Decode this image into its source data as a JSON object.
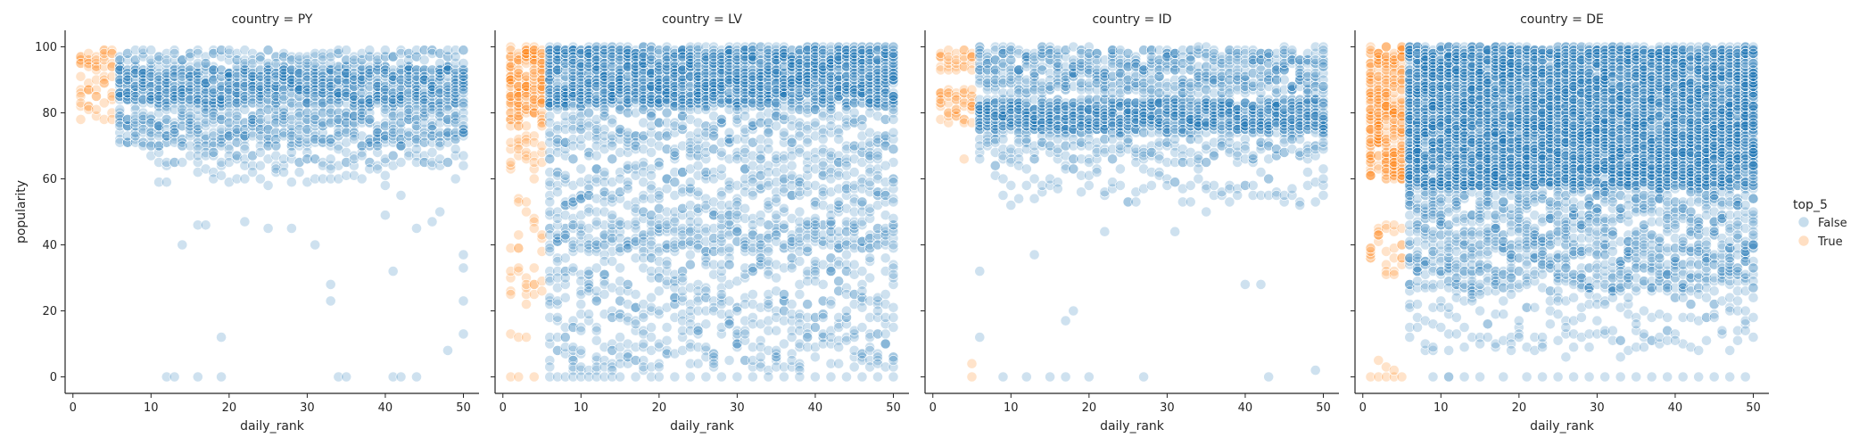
{
  "chart_data": {
    "type": "scatter",
    "layout": "facet-grid",
    "xlabel": "daily_rank",
    "ylabel": "popularity",
    "xlim": [
      -1,
      52
    ],
    "ylim": [
      -5,
      105
    ],
    "xticks": [
      0,
      10,
      20,
      30,
      40,
      50
    ],
    "yticks": [
      0,
      20,
      40,
      60,
      80,
      100
    ],
    "sharey": true,
    "grid": false,
    "legend": {
      "title": "top_5",
      "placement": "right",
      "entries": [
        {
          "label": "False",
          "color": "#1f77b4"
        },
        {
          "label": "True",
          "color": "#ff7f0e"
        }
      ]
    },
    "hue": {
      "field": "top_5",
      "true_rule": "daily_rank <= 5"
    },
    "point_alpha": 0.22,
    "panels": [
      {
        "title": "country = PY",
        "rank_max_true": 5,
        "bands": [
          {
            "x": [
              1,
              5
            ],
            "y": [
              93,
              99
            ],
            "w": 4
          },
          {
            "x": [
              1,
              5
            ],
            "y": [
              84,
              92
            ],
            "w": 2
          },
          {
            "x": [
              1,
              5
            ],
            "y": [
              78,
              83
            ],
            "w": 1.2
          },
          {
            "x": [
              6,
              50
            ],
            "y": [
              82,
              94
            ],
            "w": 8
          },
          {
            "x": [
              6,
              50
            ],
            "y": [
              95,
              99
            ],
            "w": 3
          },
          {
            "x": [
              6,
              50
            ],
            "y": [
              70,
              81
            ],
            "w": 4
          },
          {
            "x": [
              10,
              50
            ],
            "y": [
              64,
              70
            ],
            "w": 1
          },
          {
            "x": [
              16,
              40
            ],
            "y": [
              58,
              63
            ],
            "w": 1
          }
        ],
        "extras": [
          [
            12,
            0
          ],
          [
            13,
            0
          ],
          [
            16,
            0
          ],
          [
            19,
            0
          ],
          [
            34,
            0
          ],
          [
            35,
            0
          ],
          [
            41,
            0
          ],
          [
            42,
            0
          ],
          [
            44,
            0
          ],
          [
            33,
            23
          ],
          [
            33,
            28
          ],
          [
            41,
            32
          ],
          [
            50,
            33
          ],
          [
            50,
            37
          ],
          [
            50,
            23
          ],
          [
            50,
            13
          ],
          [
            19,
            12
          ],
          [
            14,
            40
          ],
          [
            16,
            46
          ],
          [
            17,
            46
          ],
          [
            22,
            47
          ],
          [
            25,
            45
          ],
          [
            28,
            45
          ],
          [
            31,
            40
          ],
          [
            40,
            49
          ],
          [
            42,
            55
          ],
          [
            44,
            45
          ],
          [
            46,
            47
          ],
          [
            47,
            50
          ],
          [
            48,
            8
          ],
          [
            11,
            59
          ],
          [
            12,
            59
          ],
          [
            49,
            60
          ]
        ]
      },
      {
        "title": "country = LV",
        "rank_max_true": 5,
        "bands": [
          {
            "x": [
              1,
              5
            ],
            "y": [
              78,
              100
            ],
            "w": 6
          },
          {
            "x": [
              1,
              5
            ],
            "y": [
              60,
              77
            ],
            "w": 1.5
          },
          {
            "x": [
              2,
              4
            ],
            "y": [
              46,
              54
            ],
            "w": 1
          },
          {
            "x": [
              1,
              5
            ],
            "y": [
              20,
              45
            ],
            "w": 0.8
          },
          {
            "x": [
              6,
              50
            ],
            "y": [
              82,
              100
            ],
            "w": 10
          },
          {
            "x": [
              6,
              50
            ],
            "y": [
              65,
              81
            ],
            "w": 2
          },
          {
            "x": [
              6,
              50
            ],
            "y": [
              38,
              46
            ],
            "w": 3
          },
          {
            "x": [
              6,
              50
            ],
            "y": [
              46,
              64
            ],
            "w": 1.5
          },
          {
            "x": [
              6,
              50
            ],
            "y": [
              2,
              37
            ],
            "w": 1.2
          }
        ],
        "extras": [
          [
            1,
            0
          ],
          [
            2,
            0
          ],
          [
            4,
            0
          ],
          [
            6,
            0
          ],
          [
            7,
            0
          ],
          [
            8,
            0
          ],
          [
            9,
            0
          ],
          [
            10,
            0
          ],
          [
            11,
            0
          ],
          [
            12,
            0
          ],
          [
            13,
            0
          ],
          [
            14,
            0
          ],
          [
            15,
            0
          ],
          [
            17,
            0
          ],
          [
            19,
            0
          ],
          [
            20,
            0
          ],
          [
            22,
            0
          ],
          [
            24,
            0
          ],
          [
            26,
            0
          ],
          [
            28,
            0
          ],
          [
            30,
            0
          ],
          [
            32,
            0
          ],
          [
            34,
            0
          ],
          [
            36,
            0
          ],
          [
            38,
            0
          ],
          [
            40,
            0
          ],
          [
            42,
            0
          ],
          [
            44,
            0
          ],
          [
            46,
            0
          ],
          [
            48,
            0
          ],
          [
            50,
            0
          ],
          [
            1,
            13
          ],
          [
            2,
            12
          ],
          [
            3,
            12
          ]
        ]
      },
      {
        "title": "country = ID",
        "rank_max_true": 5,
        "bands": [
          {
            "x": [
              1,
              5
            ],
            "y": [
              93,
              99
            ],
            "w": 3
          },
          {
            "x": [
              1,
              5
            ],
            "y": [
              76,
              88
            ],
            "w": 3
          },
          {
            "x": [
              6,
              50
            ],
            "y": [
              74,
              84
            ],
            "w": 10
          },
          {
            "x": [
              6,
              50
            ],
            "y": [
              86,
              100
            ],
            "w": 4
          },
          {
            "x": [
              6,
              50
            ],
            "y": [
              65,
              73
            ],
            "w": 2
          },
          {
            "x": [
              8,
              50
            ],
            "y": [
              52,
              64
            ],
            "w": 0.7
          }
        ],
        "extras": [
          [
            5,
            0
          ],
          [
            5,
            4
          ],
          [
            9,
            0
          ],
          [
            12,
            0
          ],
          [
            15,
            0
          ],
          [
            17,
            0
          ],
          [
            20,
            0
          ],
          [
            27,
            0
          ],
          [
            43,
            0
          ],
          [
            49,
            2
          ],
          [
            6,
            12
          ],
          [
            6,
            32
          ],
          [
            13,
            37
          ],
          [
            17,
            17
          ],
          [
            18,
            20
          ],
          [
            22,
            44
          ],
          [
            31,
            44
          ],
          [
            35,
            50
          ],
          [
            40,
            28
          ],
          [
            42,
            28
          ],
          [
            50,
            55
          ],
          [
            50,
            60
          ],
          [
            4,
            66
          ]
        ]
      },
      {
        "title": "country = DE",
        "rank_max_true": 5,
        "bands": [
          {
            "x": [
              1,
              5
            ],
            "y": [
              60,
              100
            ],
            "w": 6
          },
          {
            "x": [
              1,
              5
            ],
            "y": [
              30,
              46
            ],
            "w": 1.5
          },
          {
            "x": [
              6,
              50
            ],
            "y": [
              57,
              100
            ],
            "w": 12
          },
          {
            "x": [
              6,
              50
            ],
            "y": [
              26,
              56
            ],
            "w": 3
          },
          {
            "x": [
              6,
              50
            ],
            "y": [
              8,
              25
            ],
            "w": 0.6
          }
        ],
        "extras": [
          [
            1,
            0
          ],
          [
            2,
            0
          ],
          [
            3,
            0
          ],
          [
            4,
            0
          ],
          [
            5,
            0
          ],
          [
            2,
            5
          ],
          [
            3,
            3
          ],
          [
            4,
            2
          ],
          [
            9,
            0
          ],
          [
            11,
            0
          ],
          [
            13,
            0
          ],
          [
            15,
            0
          ],
          [
            18,
            0
          ],
          [
            21,
            0
          ],
          [
            23,
            0
          ],
          [
            25,
            0
          ],
          [
            27,
            0
          ],
          [
            29,
            0
          ],
          [
            31,
            0
          ],
          [
            33,
            0
          ],
          [
            35,
            0
          ],
          [
            37,
            0
          ],
          [
            39,
            0
          ],
          [
            41,
            0
          ],
          [
            43,
            0
          ],
          [
            45,
            0
          ],
          [
            47,
            0
          ],
          [
            49,
            0
          ],
          [
            11,
            0
          ],
          [
            26,
            6
          ],
          [
            33,
            6
          ],
          [
            40,
            11
          ]
        ]
      }
    ]
  }
}
